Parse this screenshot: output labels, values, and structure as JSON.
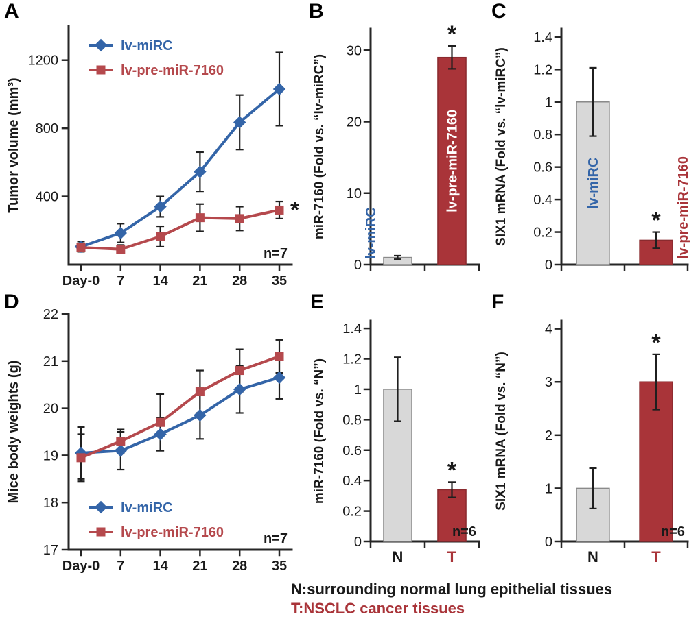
{
  "figure": {
    "background": "#ffffff",
    "panels": [
      {
        "letter": "A"
      },
      {
        "letter": "B"
      },
      {
        "letter": "C"
      },
      {
        "letter": "D"
      },
      {
        "letter": "E"
      },
      {
        "letter": "F"
      }
    ]
  },
  "captions": {
    "line1": "N:surrounding normal lung epithelial tissues",
    "line2": "T:NSCLC cancer tissues",
    "line1_color": "#1a1a1a",
    "line2_color": "#a93439"
  },
  "colors": {
    "blue_series": "#3465a8",
    "red_series": "#b5494d",
    "red_bar": "#a93439",
    "gray_bar": "#d8d8d8",
    "axis": "#262626",
    "error_bar": "#1f1f1f"
  },
  "chart_data": [
    {
      "id": "A",
      "type": "line",
      "ylabel": "Tumor volume (mm³)",
      "ylim": [
        0,
        1400
      ],
      "yticks": [
        {
          "v": 400,
          "label": "400"
        },
        {
          "v": 800,
          "label": "800"
        },
        {
          "v": 1200,
          "label": "1200"
        }
      ],
      "x_labels": [
        "Day-0",
        "7",
        "14",
        "21",
        "28",
        "35"
      ],
      "series": [
        {
          "name": "lv-miRC",
          "color": "#3465a8",
          "marker": "diamond",
          "values": [
            105,
            185,
            340,
            545,
            835,
            1030
          ],
          "errors": [
            30,
            55,
            60,
            115,
            160,
            215
          ]
        },
        {
          "name": "lv-pre-miR-7160",
          "color": "#b5494d",
          "marker": "square",
          "values": [
            100,
            90,
            165,
            275,
            270,
            320
          ],
          "errors": [
            20,
            25,
            60,
            80,
            70,
            50
          ]
        }
      ],
      "legend_position": "top-left",
      "n_label": "n=7",
      "star_series": 1,
      "star_symbol": "*"
    },
    {
      "id": "B",
      "type": "bar",
      "ylabel": "miR-7160 (Fold vs. “lv-miRC”)",
      "ylim": [
        0,
        33
      ],
      "yticks": [
        {
          "v": 0,
          "label": "0"
        },
        {
          "v": 10,
          "label": "10"
        },
        {
          "v": 20,
          "label": "20"
        },
        {
          "v": 30,
          "label": "30"
        }
      ],
      "bars": [
        {
          "label": "lv-miRC",
          "value": 1,
          "error": 0.25,
          "fill": "#d8d8d8",
          "stroke": "#8a8a8a",
          "label_color": "#3465a8",
          "label_placement": "left-outside",
          "star": false
        },
        {
          "label": "lv-pre-miR-7160",
          "value": 29,
          "error": 1.6,
          "fill": "#a93439",
          "stroke": "#8a2a2e",
          "label_color": "#ffffff",
          "label_placement": "inside",
          "star": true
        }
      ],
      "n_label": "",
      "star_symbol": "*"
    },
    {
      "id": "C",
      "type": "bar",
      "ylabel": "SIX1 mRNA (Fold vs. “lv-miRC”)",
      "ylim": [
        0,
        1.45
      ],
      "yticks": [
        {
          "v": 0,
          "label": "0"
        },
        {
          "v": 0.2,
          "label": "0.2"
        },
        {
          "v": 0.4,
          "label": "0.4"
        },
        {
          "v": 0.6,
          "label": "0.6"
        },
        {
          "v": 0.8,
          "label": "0.8"
        },
        {
          "v": 1,
          "label": "1"
        },
        {
          "v": 1.2,
          "label": "1.2"
        },
        {
          "v": 1.4,
          "label": "1.4"
        }
      ],
      "bars": [
        {
          "label": "lv-miRC",
          "value": 1.0,
          "error": 0.21,
          "fill": "#d8d8d8",
          "stroke": "#8a8a8a",
          "label_color": "#3465a8",
          "label_placement": "inside",
          "star": false
        },
        {
          "label": "lv-pre-miR-7160",
          "value": 0.15,
          "error": 0.05,
          "fill": "#a93439",
          "stroke": "#8a2a2e",
          "label_color": "#a93439",
          "label_placement": "right-outside",
          "star": true
        }
      ],
      "n_label": "",
      "star_symbol": "*"
    },
    {
      "id": "D",
      "type": "line",
      "ylabel": "Mice body weights (g)",
      "ylim": [
        17,
        22
      ],
      "yticks": [
        {
          "v": 17,
          "label": "17"
        },
        {
          "v": 18,
          "label": "18"
        },
        {
          "v": 19,
          "label": "19"
        },
        {
          "v": 20,
          "label": "20"
        },
        {
          "v": 21,
          "label": "21"
        },
        {
          "v": 22,
          "label": "22"
        }
      ],
      "x_labels": [
        "Day-0",
        "7",
        "14",
        "21",
        "28",
        "35"
      ],
      "series": [
        {
          "name": "lv-miRC",
          "color": "#3465a8",
          "marker": "diamond",
          "values": [
            19.05,
            19.1,
            19.45,
            19.85,
            20.4,
            20.65
          ],
          "errors": [
            0.55,
            0.4,
            0.35,
            0.5,
            0.5,
            0.45
          ]
        },
        {
          "name": "lv-pre-miR-7160",
          "color": "#b5494d",
          "marker": "square",
          "values": [
            18.95,
            19.3,
            19.7,
            20.35,
            20.8,
            21.1
          ],
          "errors": [
            0.5,
            0.25,
            0.6,
            0.45,
            0.45,
            0.35
          ]
        }
      ],
      "legend_position": "bottom-left",
      "n_label": "n=7",
      "star_series": null,
      "star_symbol": "*"
    },
    {
      "id": "E",
      "type": "bar",
      "ylabel": "miR-7160 (Fold vs. “N”)",
      "ylim": [
        0,
        1.45
      ],
      "yticks": [
        {
          "v": 0,
          "label": "0"
        },
        {
          "v": 0.2,
          "label": "0.2"
        },
        {
          "v": 0.4,
          "label": "0.4"
        },
        {
          "v": 0.6,
          "label": "0.6"
        },
        {
          "v": 0.8,
          "label": "0.8"
        },
        {
          "v": 1,
          "label": "1"
        },
        {
          "v": 1.2,
          "label": "1.2"
        },
        {
          "v": 1.4,
          "label": "1.4"
        }
      ],
      "bars": [
        {
          "label": "N",
          "value": 1.0,
          "error": 0.21,
          "fill": "#d8d8d8",
          "stroke": "#8a8a8a",
          "label_color": "#1a1a1a",
          "label_placement": "below",
          "star": false
        },
        {
          "label": "T",
          "value": 0.34,
          "error": 0.05,
          "fill": "#a93439",
          "stroke": "#8a2a2e",
          "label_color": "#a93439",
          "label_placement": "below",
          "star": true
        }
      ],
      "n_label": "n=6",
      "star_symbol": "*"
    },
    {
      "id": "F",
      "type": "bar",
      "ylabel": "SIX1 mRNA (Fold vs. “N”)",
      "ylim": [
        0,
        4.15
      ],
      "yticks": [
        {
          "v": 0,
          "label": "0"
        },
        {
          "v": 1,
          "label": "1"
        },
        {
          "v": 2,
          "label": "2"
        },
        {
          "v": 3,
          "label": "3"
        },
        {
          "v": 4,
          "label": "4"
        }
      ],
      "bars": [
        {
          "label": "N",
          "value": 1.0,
          "error": 0.38,
          "fill": "#d8d8d8",
          "stroke": "#8a8a8a",
          "label_color": "#1a1a1a",
          "label_placement": "below",
          "star": false
        },
        {
          "label": "T",
          "value": 3.0,
          "error": 0.52,
          "fill": "#a93439",
          "stroke": "#8a2a2e",
          "label_color": "#a93439",
          "label_placement": "below",
          "star": true
        }
      ],
      "n_label": "n=6",
      "star_symbol": "*"
    }
  ]
}
